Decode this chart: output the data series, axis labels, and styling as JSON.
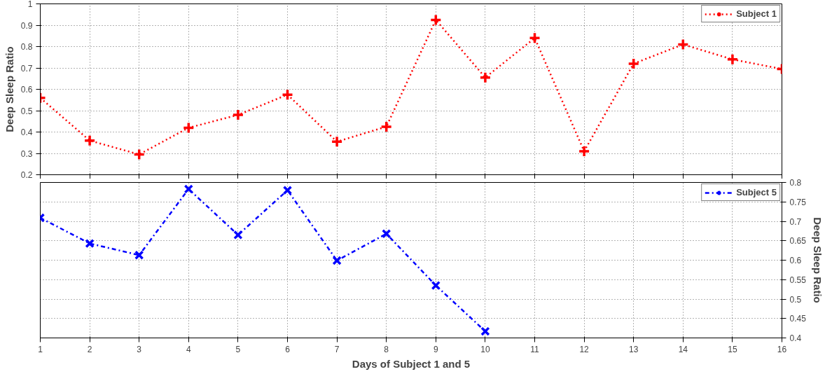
{
  "chart_data": [
    {
      "type": "line",
      "ylabel": "Deep Sleep Ratio",
      "x": [
        1,
        2,
        3,
        4,
        5,
        6,
        7,
        8,
        9,
        10,
        11,
        12,
        13,
        14,
        15,
        16
      ],
      "series": [
        {
          "name": "Subject 1",
          "color": "#ff0000",
          "values": [
            0.56,
            0.36,
            0.295,
            0.42,
            0.48,
            0.575,
            0.355,
            0.425,
            0.925,
            0.655,
            0.84,
            0.31,
            0.72,
            0.81,
            0.74,
            0.695
          ]
        }
      ],
      "xlim": [
        1,
        16
      ],
      "xticks": [
        1,
        2,
        3,
        4,
        5,
        6,
        7,
        8,
        9,
        10,
        11,
        12,
        13,
        14,
        15,
        16
      ],
      "ylim": [
        0.2,
        1
      ],
      "yticks": [
        0.2,
        0.3,
        0.4,
        0.5,
        0.6,
        0.7,
        0.8,
        0.9,
        1
      ],
      "tick_labels": "y",
      "grid": true,
      "legend": "top right",
      "marker": "cross",
      "line_style": "dotted"
    },
    {
      "type": "line",
      "xlabel": "Days of Subject 1 and 5",
      "y2label": "Deep Sleep Ratio",
      "x": [
        1,
        2,
        3,
        4,
        5,
        6,
        7,
        8,
        9,
        10
      ],
      "series": [
        {
          "name": "Subject 5",
          "color": "#0000ff",
          "axis": "y2",
          "values": [
            0.709,
            0.643,
            0.613,
            0.783,
            0.665,
            0.78,
            0.599,
            0.668,
            0.535,
            0.417
          ]
        }
      ],
      "xlim": [
        1,
        16
      ],
      "xticks": [
        1,
        2,
        3,
        4,
        5,
        6,
        7,
        8,
        9,
        10,
        11,
        12,
        13,
        14,
        15,
        16
      ],
      "y2lim": [
        0.4,
        0.8
      ],
      "y2ticks": [
        0.4,
        0.45,
        0.5,
        0.55,
        0.6,
        0.65,
        0.7,
        0.75,
        0.8
      ],
      "grid": true,
      "legend": "top right",
      "marker": "x",
      "line_style": "dashdot"
    }
  ]
}
